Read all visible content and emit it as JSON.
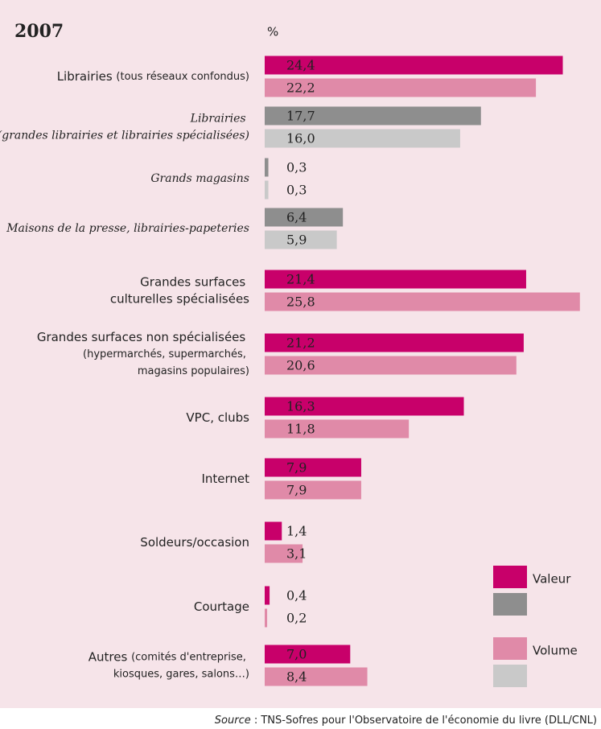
{
  "chart_data": {
    "type": "bar",
    "orientation": "horizontal",
    "title": "2007",
    "unit_label": "%",
    "categories": [
      "Librairies (tous réseaux confondus)",
      "Librairies\n(grandes librairies et librairies spécialisées)",
      "Grands magasins",
      "Maisons de la presse, librairies-papeteries",
      "Grandes surfaces\nculturelles spécialisées",
      "Grandes surfaces non spécialisées\n(hypermarchés, supermarchés,\nmagasins populaires)",
      "VPC, clubs",
      "Internet",
      "Soldeurs/occasion",
      "Courtage",
      "Autres (comités d'entreprise,\nkiosques, gares, salons…)"
    ],
    "category_style": [
      "normal",
      "italic",
      "italic",
      "italic",
      "normal",
      "normal",
      "normal",
      "normal",
      "normal",
      "normal",
      "normal"
    ],
    "series": [
      {
        "name": "Valeur",
        "color": "#c8006a",
        "alt_color": "#8e8e8e",
        "values": [
          24.4,
          17.7,
          0.3,
          6.4,
          21.4,
          21.2,
          16.3,
          7.9,
          1.4,
          0.4,
          7.0
        ],
        "value_labels": [
          "24,4",
          "17,7",
          "0,3",
          "6,4",
          "21,4",
          "21,2",
          "16,3",
          "7,9",
          "1,4",
          "0,4",
          "7,0"
        ]
      },
      {
        "name": "Volume",
        "color": "#e08aa8",
        "alt_color": "#c9c9c9",
        "values": [
          22.2,
          16.0,
          0.3,
          5.9,
          25.8,
          20.6,
          11.8,
          7.9,
          3.1,
          0.2,
          8.4
        ],
        "value_labels": [
          "22,2",
          "16,0",
          "0,3",
          "5,9",
          "25,8",
          "20,6",
          "11,8",
          "7,9",
          "3,1",
          "0,2",
          "8,4"
        ]
      }
    ],
    "xlim": [
      0,
      27
    ],
    "source": "Source : TNS-Sofres pour l'Observatoire de l'économie du livre (DLL/CNL)"
  }
}
